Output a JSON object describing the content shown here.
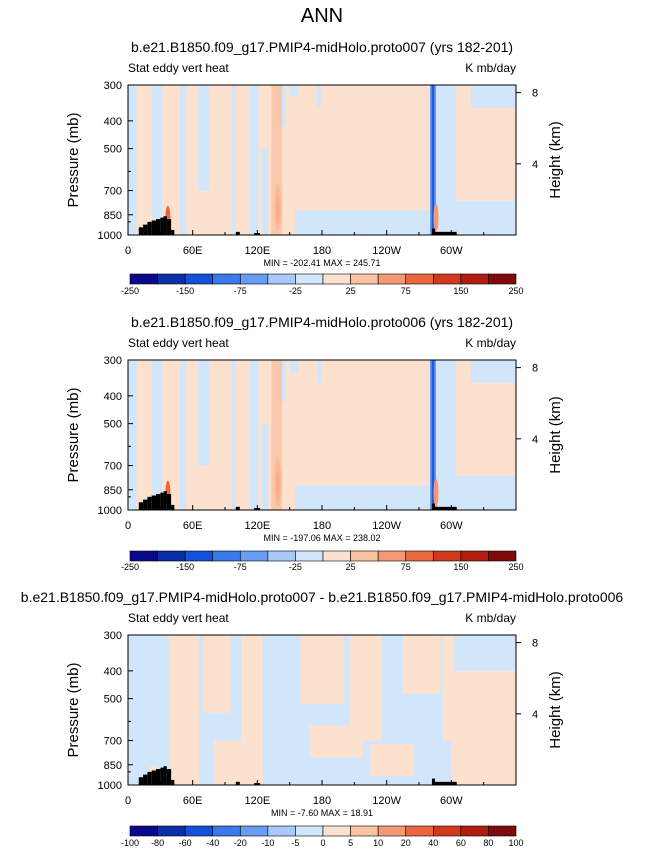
{
  "figure_title": "ANN",
  "colors": {
    "palette_main": [
      "#08088a",
      "#0a2fa6",
      "#1650d6",
      "#3a78ec",
      "#6a9cf2",
      "#a8c9f7",
      "#d2e6fb",
      "#fde1cf",
      "#f9c2a1",
      "#f39a74",
      "#e8673f",
      "#d23a1f",
      "#b01d10",
      "#7f0a0a"
    ],
    "palette_diff": [
      "#08088a",
      "#0a2fa6",
      "#1650d6",
      "#3a78ec",
      "#6a9cf2",
      "#a8c9f7",
      "#d2e6fb",
      "#fde1cf",
      "#f9c2a1",
      "#f39a74",
      "#e8673f",
      "#d23a1f",
      "#b01d10",
      "#7f0a0a"
    ],
    "land": "#000000",
    "frame": "#000000"
  },
  "chart_data": [
    {
      "type": "heatmap",
      "id": "panel1",
      "title": "b.e21.B1850.f09_g17.PMIP4-midHolo.proto007 (yrs 182-201)",
      "left_label": "Stat eddy vert heat",
      "right_label": "K mb/day",
      "ylabel": "Pressure (mb)",
      "ylabel_right": "Height (km)",
      "x_ticks": [
        "0",
        "60E",
        "120E",
        "180",
        "120W",
        "60W"
      ],
      "x_tick_values": [
        0,
        60,
        120,
        180,
        240,
        300
      ],
      "xlim": [
        0,
        360
      ],
      "y_ticks": [
        "300",
        "400",
        "500",
        "700",
        "850",
        "1000"
      ],
      "y_tick_values": [
        300,
        400,
        500,
        700,
        850,
        1000
      ],
      "ylim": [
        300,
        1000
      ],
      "height_ticks": [
        "8",
        "4"
      ],
      "height_tick_values": [
        8,
        4
      ],
      "stats": "MIN = -202.41  MAX = 245.71",
      "min": -202.41,
      "max": 245.71,
      "colorbar_labels": [
        "-250",
        "-150",
        "-75",
        "-25",
        "25",
        "75",
        "150",
        "250"
      ],
      "levels": [
        -250,
        -200,
        -150,
        -100,
        -75,
        -50,
        -25,
        0,
        25,
        50,
        75,
        100,
        150,
        200,
        250
      ],
      "background_sign": "positive"
    },
    {
      "type": "heatmap",
      "id": "panel2",
      "title": "b.e21.B1850.f09_g17.PMIP4-midHolo.proto006 (yrs 182-201)",
      "left_label": "Stat eddy vert heat",
      "right_label": "K mb/day",
      "ylabel": "Pressure (mb)",
      "ylabel_right": "Height (km)",
      "x_ticks": [
        "0",
        "60E",
        "120E",
        "180",
        "120W",
        "60W"
      ],
      "x_tick_values": [
        0,
        60,
        120,
        180,
        240,
        300
      ],
      "xlim": [
        0,
        360
      ],
      "y_ticks": [
        "300",
        "400",
        "500",
        "700",
        "850",
        "1000"
      ],
      "y_tick_values": [
        300,
        400,
        500,
        700,
        850,
        1000
      ],
      "ylim": [
        300,
        1000
      ],
      "height_ticks": [
        "8",
        "4"
      ],
      "height_tick_values": [
        8,
        4
      ],
      "stats": "MIN = -197.06  MAX = 238.02",
      "min": -197.06,
      "max": 238.02,
      "colorbar_labels": [
        "-250",
        "-150",
        "-75",
        "-25",
        "25",
        "75",
        "150",
        "250"
      ],
      "levels": [
        -250,
        -200,
        -150,
        -100,
        -75,
        -50,
        -25,
        0,
        25,
        50,
        75,
        100,
        150,
        200,
        250
      ],
      "background_sign": "positive"
    },
    {
      "type": "heatmap",
      "id": "panel3",
      "title": "b.e21.B1850.f09_g17.PMIP4-midHolo.proto007 - b.e21.B1850.f09_g17.PMIP4-midHolo.proto006",
      "left_label": "Stat eddy vert heat",
      "right_label": "K mb/day",
      "ylabel": "Pressure (mb)",
      "ylabel_right": "Height (km)",
      "x_ticks": [
        "0",
        "60E",
        "120E",
        "180",
        "120W",
        "60W"
      ],
      "x_tick_values": [
        0,
        60,
        120,
        180,
        240,
        300
      ],
      "xlim": [
        0,
        360
      ],
      "y_ticks": [
        "300",
        "400",
        "500",
        "700",
        "850",
        "1000"
      ],
      "y_tick_values": [
        300,
        400,
        500,
        700,
        850,
        1000
      ],
      "ylim": [
        300,
        1000
      ],
      "height_ticks": [
        "8",
        "4"
      ],
      "height_tick_values": [
        8,
        4
      ],
      "stats": "MIN = -7.60  MAX = 18.91",
      "min": -7.6,
      "max": 18.91,
      "colorbar_labels": [
        "-100",
        "-80",
        "-60",
        "-40",
        "-20",
        "-10",
        "-5",
        "0",
        "5",
        "10",
        "20",
        "40",
        "60",
        "80",
        "100"
      ],
      "levels": [
        -100,
        -80,
        -60,
        -40,
        -20,
        -10,
        -5,
        0,
        5,
        10,
        20,
        40,
        60,
        80,
        100
      ],
      "background_sign": "mixed"
    }
  ]
}
